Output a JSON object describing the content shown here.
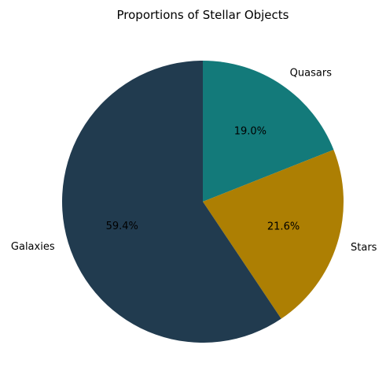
{
  "chart_data": {
    "type": "pie",
    "title": "Proportions of Stellar Objects",
    "start_angle_deg": 90,
    "direction": "clockwise",
    "slices": [
      {
        "label": "Quasars",
        "value": 19.0,
        "pct_label": "19.0%",
        "color": "#137a7a"
      },
      {
        "label": "Stars",
        "value": 21.6,
        "pct_label": "21.6%",
        "color": "#ad7f03"
      },
      {
        "label": "Galaxies",
        "value": 59.4,
        "pct_label": "59.4%",
        "color": "#213b4f"
      }
    ]
  }
}
